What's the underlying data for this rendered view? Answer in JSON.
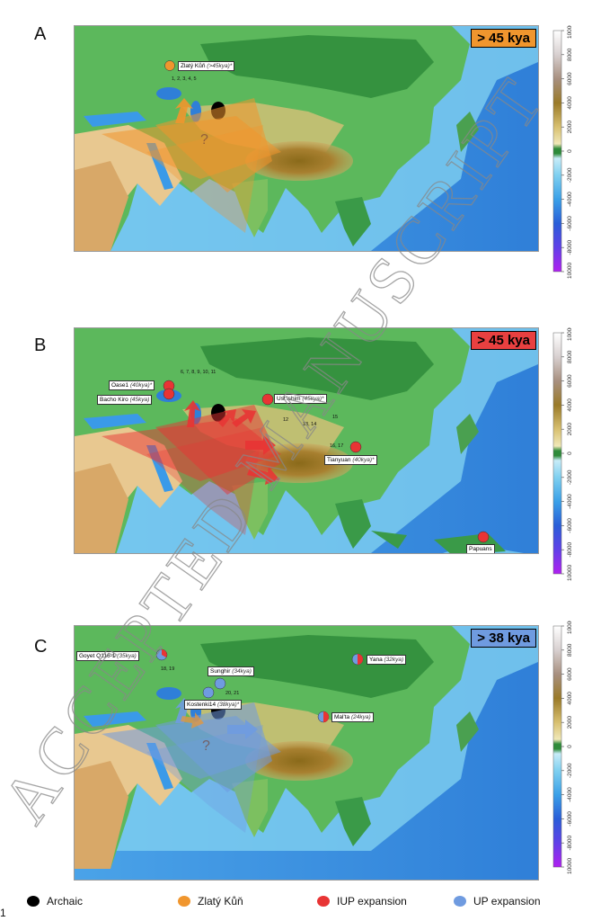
{
  "panels": [
    {
      "letter": "A",
      "age": "> 45 kya",
      "age_color": "#f09030",
      "labels": [
        {
          "name": "Zlatý Kůň",
          "age": "(>45kya)*",
          "pos": "zlaty"
        }
      ],
      "numbers": [
        {
          "text": "1, 2, 3, 4, 5",
          "pos": "a-nums"
        }
      ]
    },
    {
      "letter": "B",
      "age": "> 45 kya",
      "age_color": "#e84040",
      "labels": [
        {
          "name": "Oase1",
          "age": "(40kya)*",
          "pos": "oase"
        },
        {
          "name": "Bacho Kiro",
          "age": "(45kya)",
          "pos": "bacho"
        },
        {
          "name": "Ust'Ishim",
          "age": "(45kya)*",
          "pos": "ust"
        },
        {
          "name": "Tianyuan",
          "age": "(40kya)*",
          "pos": "tian"
        },
        {
          "name": "Papuans",
          "age": "",
          "pos": "papuans"
        }
      ],
      "numbers": [
        {
          "text": "6, 7, 8, 9, 10, 11",
          "pos": "b-n1"
        },
        {
          "text": "12",
          "pos": "b-n2"
        },
        {
          "text": "13, 14",
          "pos": "b-n3"
        },
        {
          "text": "15",
          "pos": "b-n4"
        },
        {
          "text": "16, 17",
          "pos": "b-n5"
        }
      ]
    },
    {
      "letter": "C",
      "age": "> 38 kya",
      "age_color": "#6f9be0",
      "labels": [
        {
          "name": "Goyet Q116-1",
          "age": "(35kya)",
          "pos": "goyet"
        },
        {
          "name": "Sunghir",
          "age": "(34kya)",
          "pos": "sunghir"
        },
        {
          "name": "Kostenki14",
          "age": "(38kya)*",
          "pos": "kostenki"
        },
        {
          "name": "Yana",
          "age": "(32kya)",
          "pos": "yana"
        },
        {
          "name": "Mal'ta",
          "age": "(24kya)",
          "pos": "malta"
        }
      ],
      "numbers": [
        {
          "text": "18, 19",
          "pos": "c-n1"
        },
        {
          "text": "20, 21",
          "pos": "c-n2"
        }
      ]
    }
  ],
  "scale": {
    "ticks": [
      "10000",
      "8000",
      "6000",
      "4000",
      "2000",
      "0",
      "-2000",
      "-4000",
      "-6000",
      "-8000",
      "-10000"
    ]
  },
  "legend": [
    {
      "label": "Archaic",
      "color": "#000000"
    },
    {
      "label": "Zlatý Kůň",
      "color": "#f0962e"
    },
    {
      "label": "IUP expansion",
      "color": "#e83434"
    },
    {
      "label": "UP expansion",
      "color": "#6f9be0"
    }
  ],
  "page_number": "1",
  "watermark": "ACCEPTED MANUSCRIPT"
}
